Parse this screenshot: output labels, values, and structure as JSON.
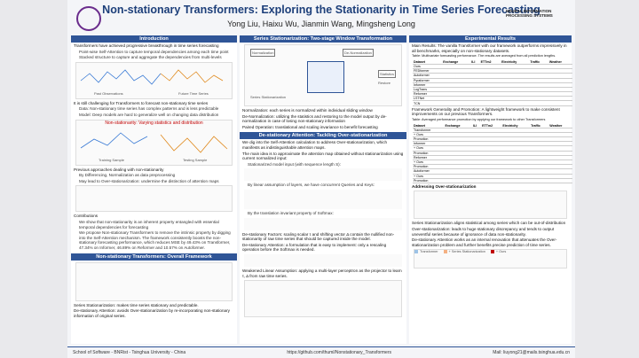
{
  "header": {
    "title": "Non-stationary Transformers: Exploring the Stationarity in Time Series Forecasting",
    "authors": "Yong Liu, Haixu Wu, Jianmin Wang, Mingsheng Long",
    "conference": "NEURAL INFORMATION PROCESSING SYSTEMS"
  },
  "intro": {
    "heading": "Introduction",
    "b1": "Transformers have achieved progressive breakthrough in time series forecasting",
    "b1a": "Point-wise Self-Attention to capture temporal dependencies among each time point",
    "b1b": "Stacked structure to capture and aggregate the dependencies from multi-levels",
    "fig1": [
      "Past Observations",
      "Future Time Series"
    ],
    "b2": "It is still challenging for Transformers to forecast non-stationary time series",
    "b2a": "Data: Non-stationary time series has complex patterns and is less predictable",
    "b2b": "Model: Deep models are hard to generalize well on changing data distribution",
    "fig2": {
      "title": "Non-stationarity: Varying statistics and distribution",
      "left": "Training Sample",
      "right": "Testing Sample"
    },
    "b3": "Previous approaches dealing with non-stationarity",
    "b3a": "By Differencing, Normalization as data preprocessing",
    "b3b": "May lead to Over-stationarization: undermine the distinction of attention maps",
    "b4": "Contributions",
    "b4a": "We show that non-stationarity is an inherent property entangled with essential temporal dependencies for forecasting",
    "b4b": "We propose Non-stationary Transformers to remove the intrinsic property by digging into the Self-Attention mechanism. The framework consistently boosts the non-stationary forecasting performance, which reduces MSE by 49.43% on Transformer, 47.34% on Informer, 46.89% on Reformer and 10.57% on Autoformer."
  },
  "framework": {
    "heading": "Non-stationary Transformers: Overall Framework",
    "b1": "Series Stationarization: makes time series stationary and predictable.",
    "b2": "De-stationary Attention: avoids Over-stationarization by re-incorporating non-stationary information of original series."
  },
  "stationarization": {
    "heading": "Series Stationarization: Two-stage Window Transformation",
    "fig": [
      "Normalization",
      "De-Normalization",
      "Series Stationarization",
      "Statistics",
      "Restore"
    ],
    "b1": "Normalization: each series is normalized within individual sliding window",
    "b2": "De-Normalization: utilizing the statistics and restoring to the model output by de-normalization in case of losing non-stationary information",
    "b3": "Paired Operation: translational and scaling invariance to benefit forecasting"
  },
  "attention": {
    "heading": "De-stationary Attention: Tackling Over-stationarization",
    "b1": "We dig into the Self-Attention calculation to address Over-stationarization, which manifests as indistinguishable attention maps.",
    "b2": "The main idea is to approximate the attention map obtained without stationarization using current normalized input:",
    "b2a": "Stationarized model input (with sequence length S):",
    "b2b": "By linear assumption of layers, we have concurrent Queries and Keys:",
    "b2c": "By the translation invariant property of Softmax:",
    "b3": "De-stationary Factors: scaling scalar τ and shifting vector Δ contain the nullified non-stationarity of raw time series that should be captured inside the model.",
    "b4": "De-stationary Attention: a formulation that is easy to implement: only a rescaling operation before the Softmax is needed.",
    "b5": "Weakened Linear Assumption: applying a multi-layer perceptron as the projector to learn τ, Δ from raw time series."
  },
  "results": {
    "heading": "Experimental Results",
    "main": "Main Results: The vanilla Transformer with our framework outperforms impressively in all benchmarks, especially on non-stationary datasets.",
    "table1": {
      "caption": "Table: Multivariate forecasting performance. The results are averaged from all prediction lengths.",
      "columns": [
        "Dataset",
        "Exchange",
        "ILI",
        "ETTm2",
        "Electricity",
        "Traffic",
        "Weather"
      ],
      "rows": [
        "Ours",
        "FEDformer",
        "Autoformer",
        "Pyraformer",
        "Informer",
        "LogTrans",
        "Reformer",
        "LSTNet",
        "TCN"
      ]
    },
    "generality": "Framework Generality and Promotion: A lightweight framework to make consistent improvements on our previous Transformers.",
    "table2": {
      "caption": "Table: Averaged performance promotion by applying our framework to other Transformers",
      "columns": [
        "Dataset",
        "Exchange",
        "ILI",
        "ETTm2",
        "Electricity",
        "Traffic",
        "Weather"
      ],
      "rows": [
        "Transformer",
        "+ Ours",
        "Promotion",
        "Informer",
        "+ Ours",
        "Promotion",
        "Reformer",
        "+ Ours",
        "Promotion",
        "Autoformer",
        "+ Ours",
        "Promotion"
      ]
    },
    "over": "Addressing Over-stationarization",
    "o1": "Series Stationarization aligns statistical among series which can be out-of-distribution",
    "o2": "Over-stationarization: leads to huge stationary discrepancy and tends to output uneventful series because of ignorance of data non-stationarity.",
    "o3": "De-stationary Attention works as an internal renovation that attenuates the Over-stationarization problem and further benefits precise prediction of time series.",
    "legend": [
      "Transformer",
      "+ Series Stationarization",
      "+ Ours"
    ]
  },
  "footer": {
    "left": "School of Software - BNRist - Tsinghua University - China",
    "mid": "https://github.com/thuml/Nonstationary_Transformers",
    "right": "Mail: liuyong21@mails.tsinghua.edu.cn"
  }
}
